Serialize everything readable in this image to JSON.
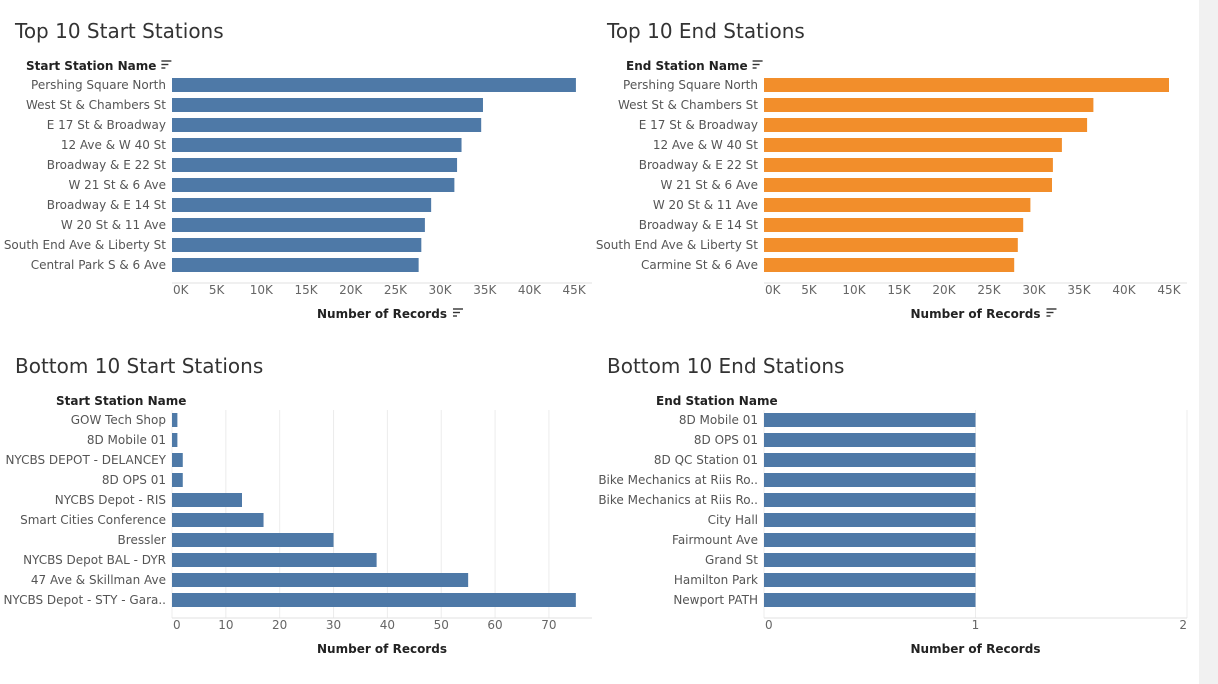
{
  "chart_data": [
    {
      "type": "bar",
      "orientation": "horizontal",
      "title": "Top 10 Start Stations",
      "row_header": "Start Station Name",
      "xlabel": "Number of Records",
      "color": "#4e79a7",
      "xlim": [
        0,
        47000
      ],
      "xticks": [
        0,
        5000,
        10000,
        15000,
        20000,
        25000,
        30000,
        35000,
        40000,
        45000
      ],
      "xtick_labels": [
        "0K",
        "5K",
        "10K",
        "15K",
        "20K",
        "25K",
        "30K",
        "35K",
        "40K",
        "45K"
      ],
      "grid": false,
      "sort_icon_header": true,
      "sort_icon_axis": true,
      "categories": [
        "Pershing Square North",
        "West St & Chambers St",
        "E 17 St & Broadway",
        "12 Ave & W 40 St",
        "Broadway & E 22 St",
        "W 21 St & 6 Ave",
        "Broadway & E 14 St",
        "W 20 St & 11 Ave",
        "South End Ave & Liberty St",
        "Central Park S & 6 Ave"
      ],
      "values": [
        45200,
        34800,
        34600,
        32400,
        31900,
        31600,
        29000,
        28300,
        27900,
        27600
      ]
    },
    {
      "type": "bar",
      "orientation": "horizontal",
      "title": "Top 10 End Stations",
      "row_header": "End Station Name",
      "xlabel": "Number of Records",
      "color": "#f28e2b",
      "xlim": [
        0,
        47000
      ],
      "xticks": [
        0,
        5000,
        10000,
        15000,
        20000,
        25000,
        30000,
        35000,
        40000,
        45000
      ],
      "xtick_labels": [
        "0K",
        "5K",
        "10K",
        "15K",
        "20K",
        "25K",
        "30K",
        "35K",
        "40K",
        "45K"
      ],
      "grid": false,
      "sort_icon_header": true,
      "sort_icon_axis": true,
      "categories": [
        "Pershing Square North",
        "West St & Chambers St",
        "E 17 St & Broadway",
        "12 Ave & W 40 St",
        "Broadway & E 22 St",
        "W 21 St & 6 Ave",
        "W 20 St & 11 Ave",
        "Broadway & E 14 St",
        "South End Ave & Liberty St",
        "Carmine St & 6 Ave"
      ],
      "values": [
        45000,
        36600,
        35900,
        33100,
        32100,
        32000,
        29600,
        28800,
        28200,
        27800
      ]
    },
    {
      "type": "bar",
      "orientation": "horizontal",
      "title": "Bottom 10 Start Stations",
      "row_header": "Start Station Name",
      "xlabel": "Number of Records",
      "color": "#4e79a7",
      "xlim": [
        0,
        78
      ],
      "xticks": [
        0,
        10,
        20,
        30,
        40,
        50,
        60,
        70
      ],
      "xtick_labels": [
        "0",
        "10",
        "20",
        "30",
        "40",
        "50",
        "60",
        "70"
      ],
      "grid": true,
      "sort_icon_header": false,
      "sort_icon_axis": false,
      "categories": [
        "GOW Tech Shop",
        "8D Mobile 01",
        "NYCBS DEPOT - DELANCEY",
        "8D OPS 01",
        "NYCBS Depot - RIS",
        "Smart Cities Conference",
        "Bressler",
        "NYCBS Depot BAL - DYR",
        "47 Ave & Skillman Ave",
        "NYCBS Depot - STY - Gara.."
      ],
      "values": [
        1,
        1,
        2,
        2,
        13,
        17,
        30,
        38,
        55,
        75
      ]
    },
    {
      "type": "bar",
      "orientation": "horizontal",
      "title": "Bottom 10 End Stations",
      "row_header": "End Station Name",
      "xlabel": "Number of Records",
      "color": "#4e79a7",
      "xlim": [
        0,
        2
      ],
      "xticks": [
        0,
        1,
        2
      ],
      "xtick_labels": [
        "0",
        "1",
        "2"
      ],
      "grid": true,
      "sort_icon_header": false,
      "sort_icon_axis": false,
      "categories": [
        "8D Mobile 01",
        "8D OPS 01",
        "8D QC Station 01",
        "Bike Mechanics at Riis Ro..",
        "Bike Mechanics at Riis Ro..",
        "City Hall",
        "Fairmount Ave",
        "Grand St",
        "Hamilton Park",
        "Newport PATH"
      ],
      "values": [
        1,
        1,
        1,
        1,
        1,
        1,
        1,
        1,
        1,
        1
      ]
    }
  ]
}
